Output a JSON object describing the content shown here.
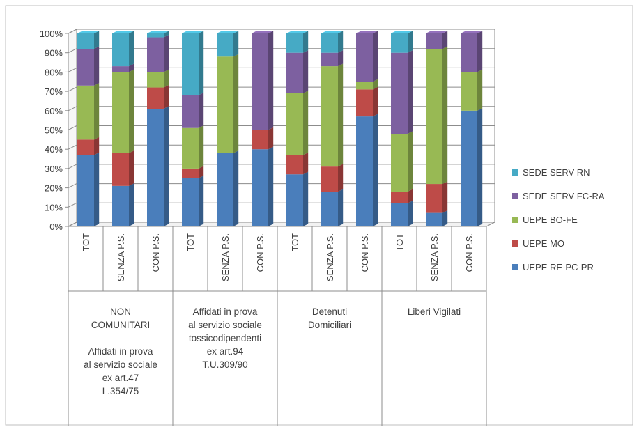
{
  "chart_data": {
    "type": "bar",
    "stacked": true,
    "percent": true,
    "three_d": true,
    "ylim": [
      0,
      100
    ],
    "yticks": [
      "0%",
      "10%",
      "20%",
      "30%",
      "40%",
      "50%",
      "60%",
      "70%",
      "80%",
      "90%",
      "100%"
    ],
    "grid": true,
    "legend_position": "right",
    "categories": [
      "TOT",
      "SENZA P.S.",
      "CON P.S.",
      "TOT",
      "SENZA P.S.",
      "CON P.S.",
      "TOT",
      "SENZA P.S.",
      "CON P.S.",
      "TOT",
      "SENZA P.S.",
      "CON P.S."
    ],
    "groups": [
      {
        "label_lines": [
          "NON",
          "COMUNITARI",
          "",
          "Affidati in prova",
          "al servizio sociale",
          "ex art.47",
          "L.354/75"
        ],
        "count": 3
      },
      {
        "label_lines": [
          "Affidati in prova",
          "al servizio sociale",
          "tossicodipendenti",
          "ex art.94",
          "T.U.309/90"
        ],
        "count": 3
      },
      {
        "label_lines": [
          "Detenuti",
          "Domiciliari"
        ],
        "count": 3
      },
      {
        "label_lines": [
          "Liberi Vigilati"
        ],
        "count": 3
      }
    ],
    "series": [
      {
        "name": "UEPE RE-PC-PR",
        "color": "#4a7ebb",
        "values": [
          37,
          21,
          61,
          25,
          38,
          40,
          27,
          18,
          57,
          12,
          7,
          60
        ]
      },
      {
        "name": "UEPE MO",
        "color": "#be4b48",
        "values": [
          8,
          17,
          11,
          5,
          0,
          10,
          10,
          13,
          14,
          6,
          15,
          0
        ]
      },
      {
        "name": "UEPE BO-FE",
        "color": "#98b954",
        "values": [
          28,
          42,
          8,
          21,
          50,
          0,
          32,
          52,
          4,
          30,
          70,
          20
        ]
      },
      {
        "name": "SEDE SERV FC-RA",
        "color": "#7d60a0",
        "values": [
          19,
          3,
          18,
          17,
          0,
          50,
          21,
          7,
          25,
          42,
          8,
          20
        ]
      },
      {
        "name": "SEDE SERV RN",
        "color": "#46aac5",
        "values": [
          8,
          17,
          2,
          32,
          12,
          0,
          10,
          10,
          0,
          10,
          0,
          0
        ]
      }
    ]
  }
}
